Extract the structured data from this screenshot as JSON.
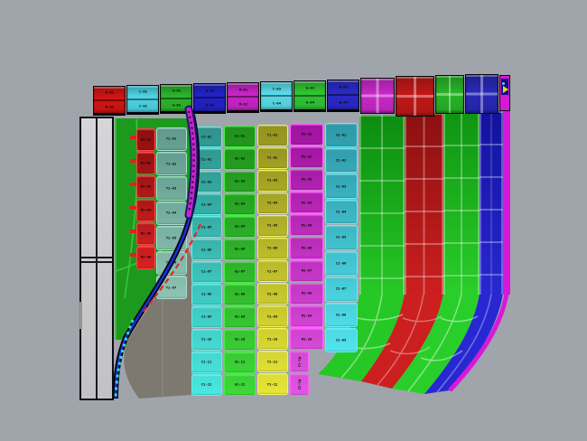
{
  "app": {
    "viewport_bg": "#a0a5ac"
  },
  "palette": {
    "background": "#a0a5ac",
    "slab_fill": "#cacacc",
    "slab_border": "#0d0d12",
    "shadow": "#7d7970",
    "wedge_dark": "#1d9a1d",
    "wedge_bright": "#30c630",
    "wedge_line": "#3dd43d"
  },
  "curves": {
    "spine_outline": "#06060f",
    "spine_inner": "#1b2fd4",
    "dotted_cyan": "#2ee0d2",
    "dashed_red": "#e02222",
    "tube_magenta": "#cc22cc",
    "tube_outline": "#191970",
    "tube_dots": "#10101a"
  },
  "top_row": {
    "boxes": [
      {
        "name": "box-red-1",
        "color": "#d41414",
        "labels": [
          "R-01",
          "R-02"
        ]
      },
      {
        "name": "box-cyan-1",
        "color": "#4cd4e4",
        "labels": [
          "C-01",
          "C-02"
        ]
      },
      {
        "name": "box-green-1",
        "color": "#2cb42c",
        "labels": [
          "G-01",
          "G-02"
        ]
      },
      {
        "name": "box-blue-1",
        "color": "#2222c8",
        "labels": [
          "B-01",
          "B-02"
        ]
      },
      {
        "name": "box-magenta-1",
        "color": "#c824c8",
        "labels": [
          "M-01",
          "M-02"
        ]
      },
      {
        "name": "box-cyan-2",
        "color": "#58dce8",
        "labels": [
          "C-03",
          "C-04"
        ]
      },
      {
        "name": "box-green-2",
        "color": "#30c434",
        "labels": [
          "G-03",
          "G-04"
        ]
      },
      {
        "name": "box-blue-2",
        "color": "#2a2ac8",
        "labels": [
          "B-03",
          "B-04"
        ]
      }
    ],
    "grid_boxes": [
      {
        "name": "box-magenta-grid",
        "color": "#c828c8"
      },
      {
        "name": "box-red-grid",
        "color": "#c01818"
      },
      {
        "name": "box-green-grid",
        "color": "#28b428"
      },
      {
        "name": "box-blue-grid",
        "color": "#2828b8"
      }
    ],
    "cap": {
      "frame": "#d818d8",
      "inner": "#101080",
      "arrow": "#e8d820",
      "dot": "#30e0e0"
    }
  },
  "stripes": [
    {
      "id": "red",
      "dark": "#8e0f0f",
      "bright": "#d62222",
      "border": "#ff4444",
      "labels": [
        "R1-01",
        "R1-02",
        "R1-03",
        "R1-04",
        "R1-05",
        "R1-06"
      ]
    },
    {
      "id": "tealgray",
      "dark": "#5f9a8c",
      "bright": "#8fc4b4",
      "border": "#aadecf",
      "labels": [
        "T1-01",
        "T1-02",
        "T1-03",
        "T1-04",
        "T1-05",
        "T1-06",
        "T1-07"
      ]
    },
    {
      "id": "teal",
      "dark": "#2e948c",
      "bright": "#48e8e0",
      "border": "#5ef2ea",
      "labels": [
        "C1-01",
        "C1-02",
        "C1-03",
        "C1-04",
        "C1-05",
        "C1-06",
        "C1-07",
        "C1-08",
        "C1-09",
        "C1-10",
        "C1-11",
        "C1-12"
      ]
    },
    {
      "id": "green",
      "dark": "#20911c",
      "bright": "#3fd83a",
      "border": "#46ee42",
      "labels": [
        "G1-01",
        "G1-02",
        "G1-03",
        "G1-04",
        "G1-05",
        "G1-06",
        "G1-07",
        "G1-08",
        "G1-09",
        "G1-10",
        "G1-11",
        "G1-12"
      ]
    },
    {
      "id": "yellow",
      "dark": "#93931f",
      "bright": "#e6e636",
      "border": "#f5f558",
      "labels": [
        "Y1-01",
        "Y1-02",
        "Y1-03",
        "Y1-04",
        "Y1-05",
        "Y1-06",
        "Y1-07",
        "Y1-08",
        "Y1-09",
        "Y1-10",
        "Y1-11",
        "Y1-12"
      ]
    },
    {
      "id": "magenta",
      "dark": "#a112a1",
      "bright": "#e255e2",
      "border": "#ff5aff",
      "tail_vertical": 2,
      "labels": [
        "M1-01",
        "M1-02",
        "M1-03",
        "M1-04",
        "M1-05",
        "M1-06",
        "M1-07",
        "M1-08",
        "M1-09",
        "M1-10",
        "M1-11",
        "M1-12"
      ]
    },
    {
      "id": "cyan",
      "dark": "#2f98a8",
      "bright": "#52e5ef",
      "border": "#64eff7",
      "labels": [
        "C2-01",
        "C2-02",
        "C2-03",
        "C2-04",
        "C2-05",
        "C2-06",
        "C2-07",
        "C2-08",
        "C2-09"
      ]
    }
  ],
  "right_bands": [
    {
      "id": "band-green-left",
      "dark": "#0c8c10",
      "bright": "#26c826"
    },
    {
      "id": "band-red",
      "dark": "#8c1010",
      "bright": "#cc1f1f"
    },
    {
      "id": "band-green-right",
      "dark": "#0f9412",
      "bright": "#2ace2a"
    },
    {
      "id": "band-blue",
      "dark": "#12129c",
      "bright": "#2828d2"
    }
  ],
  "edge_band": {
    "color": "#d818d8"
  }
}
